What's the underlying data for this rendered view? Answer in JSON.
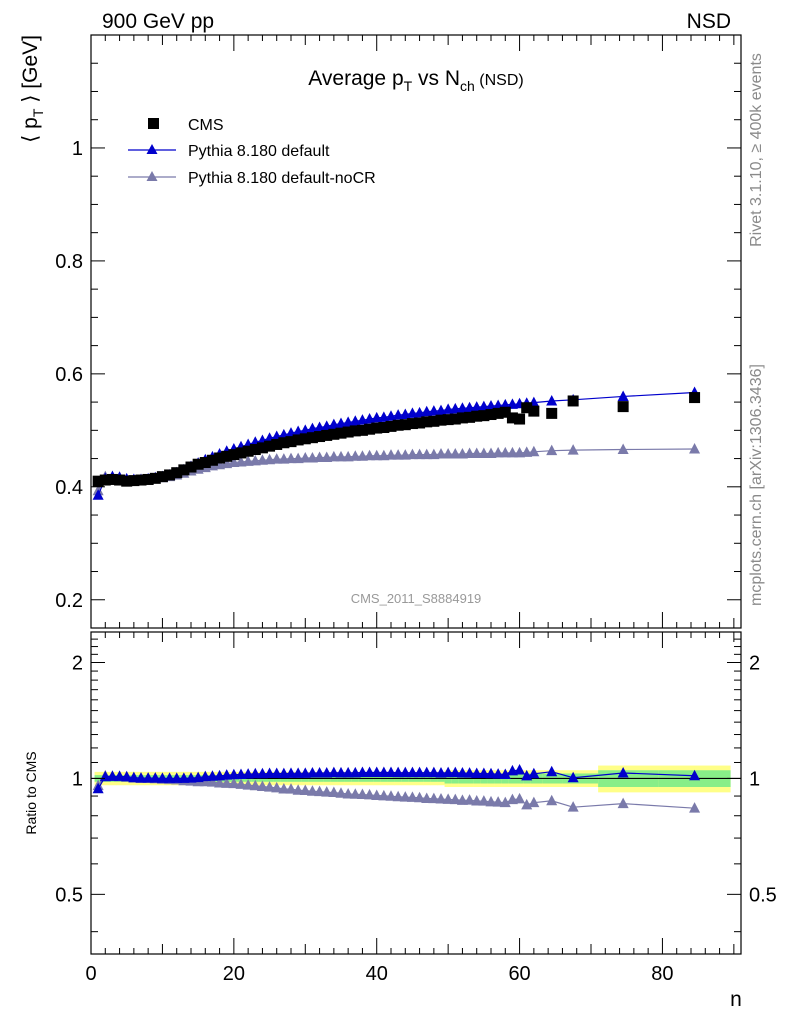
{
  "header": {
    "left": "900 GeV pp",
    "right": "NSD"
  },
  "side_labels": {
    "rivet": "Rivet 3.1.10, ≥ 400k events",
    "mcplots": "mcplots.cern.ch [arXiv:1306.3436]"
  },
  "analysis_tag": "CMS_2011_S8884919",
  "colors": {
    "cms": "#000000",
    "default": "#0000cc",
    "nocr": "#7a7aaa",
    "band_outer": "#ffff88",
    "band_inner": "#88ee88"
  },
  "chart_data": [
    {
      "type": "scatter",
      "title": "Average p_T vs N_ch (NSD)",
      "title_parts": {
        "pre": "Average p",
        "sub1": "T",
        "mid": " vs N",
        "sub2": "ch",
        "post": " (NSD)"
      },
      "ylabel": "⟨ p_T ⟩ [GeV]",
      "ylabel_parts": {
        "pre": "⟨ p",
        "sub": "T",
        "post": " ⟩ [GeV]"
      },
      "xlabel": "",
      "xlim": [
        0,
        91
      ],
      "ylim": [
        0.15,
        1.2
      ],
      "yticks": [
        0.2,
        0.4,
        0.6,
        0.8,
        1
      ],
      "ytick_labels": [
        "0.2",
        "0.4",
        "0.6",
        "0.8",
        "1"
      ],
      "legend_position": "top-left",
      "legend": [
        "CMS",
        "Pythia 8.180 default",
        "Pythia 8.180 default-noCR"
      ],
      "x": [
        1,
        2,
        3,
        4,
        5,
        6,
        7,
        8,
        9,
        10,
        11,
        12,
        13,
        14,
        15,
        16,
        17,
        18,
        19,
        20,
        21,
        22,
        23,
        24,
        25,
        26,
        27,
        28,
        29,
        30,
        31,
        32,
        33,
        34,
        35,
        36,
        37,
        38,
        39,
        40,
        41,
        42,
        43,
        44,
        45,
        46,
        47,
        48,
        49,
        50,
        51,
        52,
        53,
        54,
        55,
        56,
        57,
        58,
        59,
        60,
        61,
        62,
        64.5,
        67.5,
        74.5,
        84.5
      ],
      "series": [
        {
          "name": "CMS",
          "marker": "square",
          "values": [
            0.41,
            0.412,
            0.413,
            0.412,
            0.41,
            0.411,
            0.412,
            0.413,
            0.415,
            0.418,
            0.421,
            0.425,
            0.43,
            0.435,
            0.44,
            0.443,
            0.447,
            0.451,
            0.454,
            0.457,
            0.46,
            0.463,
            0.466,
            0.469,
            0.472,
            0.475,
            0.478,
            0.48,
            0.483,
            0.485,
            0.487,
            0.489,
            0.491,
            0.493,
            0.495,
            0.497,
            0.499,
            0.5,
            0.502,
            0.504,
            0.505,
            0.507,
            0.509,
            0.51,
            0.512,
            0.513,
            0.515,
            0.516,
            0.518,
            0.519,
            0.52,
            0.522,
            0.523,
            0.525,
            0.526,
            0.528,
            0.53,
            0.532,
            0.522,
            0.52,
            0.54,
            0.534,
            0.53,
            0.552,
            0.542,
            0.558
          ]
        },
        {
          "name": "Pythia 8.180 default",
          "marker": "triangle",
          "values": [
            0.385,
            0.415,
            0.418,
            0.417,
            0.414,
            0.413,
            0.413,
            0.414,
            0.416,
            0.418,
            0.421,
            0.425,
            0.43,
            0.436,
            0.442,
            0.448,
            0.453,
            0.458,
            0.463,
            0.467,
            0.471,
            0.475,
            0.479,
            0.482,
            0.486,
            0.489,
            0.492,
            0.495,
            0.498,
            0.5,
            0.503,
            0.505,
            0.507,
            0.51,
            0.512,
            0.514,
            0.516,
            0.518,
            0.52,
            0.522,
            0.523,
            0.525,
            0.527,
            0.528,
            0.53,
            0.531,
            0.533,
            0.534,
            0.535,
            0.537,
            0.538,
            0.539,
            0.54,
            0.541,
            0.542,
            0.543,
            0.544,
            0.545,
            0.546,
            0.547,
            0.548,
            0.549,
            0.552,
            0.554,
            0.56,
            0.567
          ]
        },
        {
          "name": "Pythia 8.180 default-noCR",
          "marker": "triangle",
          "values": [
            0.393,
            0.418,
            0.418,
            0.416,
            0.413,
            0.412,
            0.412,
            0.413,
            0.414,
            0.416,
            0.418,
            0.421,
            0.424,
            0.428,
            0.431,
            0.434,
            0.437,
            0.439,
            0.441,
            0.443,
            0.444,
            0.445,
            0.446,
            0.447,
            0.448,
            0.449,
            0.449,
            0.45,
            0.45,
            0.451,
            0.451,
            0.452,
            0.452,
            0.453,
            0.453,
            0.453,
            0.454,
            0.454,
            0.455,
            0.455,
            0.455,
            0.456,
            0.456,
            0.456,
            0.457,
            0.457,
            0.457,
            0.457,
            0.458,
            0.458,
            0.458,
            0.458,
            0.459,
            0.459,
            0.459,
            0.459,
            0.46,
            0.46,
            0.46,
            0.46,
            0.461,
            0.462,
            0.464,
            0.465,
            0.466,
            0.467
          ]
        }
      ]
    },
    {
      "type": "scatter",
      "title": "",
      "ylabel": "Ratio to CMS",
      "xlabel": "n",
      "xlim": [
        0,
        91
      ],
      "ylim": [
        0.35,
        2.4
      ],
      "xticks": [
        0,
        20,
        40,
        60,
        80
      ],
      "xtick_labels": [
        "0",
        "20",
        "40",
        "60",
        "80"
      ],
      "yticks": [
        0.5,
        1,
        2
      ],
      "ytick_labels": [
        "0.5",
        "1",
        "2"
      ],
      "reference_line": 1,
      "x": [
        1,
        2,
        3,
        4,
        5,
        6,
        7,
        8,
        9,
        10,
        11,
        12,
        13,
        14,
        15,
        16,
        17,
        18,
        19,
        20,
        21,
        22,
        23,
        24,
        25,
        26,
        27,
        28,
        29,
        30,
        31,
        32,
        33,
        34,
        35,
        36,
        37,
        38,
        39,
        40,
        41,
        42,
        43,
        44,
        45,
        46,
        47,
        48,
        49,
        50,
        51,
        52,
        53,
        54,
        55,
        56,
        57,
        58,
        59,
        60,
        61,
        62,
        64.5,
        67.5,
        74.5,
        84.5
      ],
      "series": [
        {
          "name": "Pythia 8.180 default",
          "marker": "triangle",
          "values": [
            0.94,
            1.01,
            1.012,
            1.012,
            1.01,
            1.005,
            1.002,
            1.002,
            1.002,
            1.0,
            1.0,
            1.0,
            1.0,
            1.002,
            1.005,
            1.011,
            1.013,
            1.015,
            1.02,
            1.022,
            1.024,
            1.026,
            1.028,
            1.028,
            1.03,
            1.03,
            1.029,
            1.031,
            1.031,
            1.031,
            1.033,
            1.033,
            1.033,
            1.035,
            1.034,
            1.034,
            1.034,
            1.036,
            1.036,
            1.036,
            1.036,
            1.036,
            1.035,
            1.035,
            1.035,
            1.035,
            1.035,
            1.035,
            1.033,
            1.035,
            1.035,
            1.033,
            1.032,
            1.03,
            1.03,
            1.028,
            1.026,
            1.024,
            1.046,
            1.052,
            1.015,
            1.028,
            1.041,
            1.004,
            1.033,
            1.016
          ]
        },
        {
          "name": "Pythia 8.180 default-noCR",
          "marker": "triangle",
          "values": [
            0.958,
            1.015,
            1.012,
            1.01,
            1.007,
            1.002,
            1.0,
            1.0,
            0.998,
            0.995,
            0.993,
            0.991,
            0.986,
            0.984,
            0.98,
            0.98,
            0.978,
            0.973,
            0.971,
            0.969,
            0.965,
            0.961,
            0.957,
            0.953,
            0.949,
            0.945,
            0.939,
            0.938,
            0.932,
            0.93,
            0.926,
            0.924,
            0.921,
            0.919,
            0.915,
            0.911,
            0.91,
            0.908,
            0.906,
            0.903,
            0.901,
            0.899,
            0.896,
            0.894,
            0.893,
            0.891,
            0.887,
            0.886,
            0.884,
            0.882,
            0.881,
            0.877,
            0.878,
            0.874,
            0.873,
            0.869,
            0.868,
            0.865,
            0.881,
            0.885,
            0.854,
            0.865,
            0.875,
            0.842,
            0.86,
            0.837
          ]
        }
      ]
    }
  ]
}
